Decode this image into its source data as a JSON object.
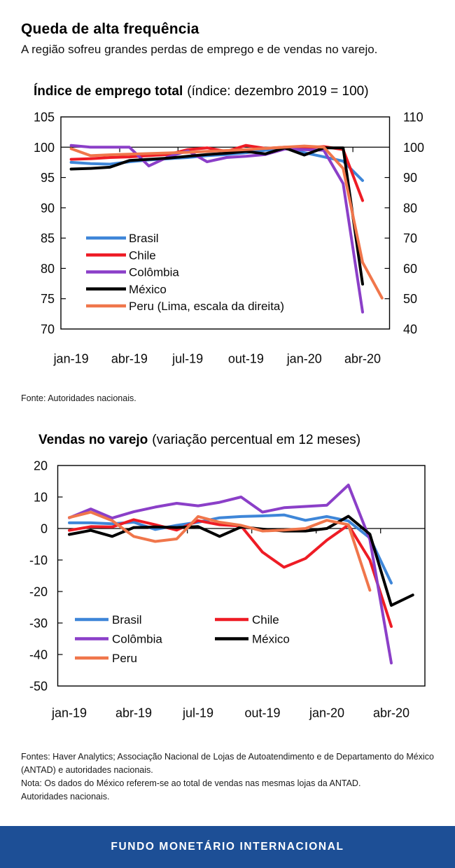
{
  "header": {
    "title": "Queda de alta frequência",
    "subtitle": "A região sofreu grandes perdas de emprego e de vendas no varejo."
  },
  "chart_data": [
    {
      "id": "employment-index",
      "type": "line",
      "title": "Índice de emprego total",
      "title_note": "(índice: dezembro 2019 = 100)",
      "x_months": [
        "jan-19",
        "fev-19",
        "mar-19",
        "abr-19",
        "mai-19",
        "jun-19",
        "jul-19",
        "ago-19",
        "set-19",
        "out-19",
        "nov-19",
        "dez-19",
        "jan-20",
        "fev-20",
        "mar-20",
        "abr-20",
        "mai-20"
      ],
      "x_tick_labels": [
        "jan-19",
        "abr-19",
        "jul-19",
        "out-19",
        "jan-20",
        "abr-20"
      ],
      "left_axis": {
        "min": 70,
        "max": 105,
        "label_ticks": [
          105,
          100,
          95,
          90,
          85,
          80,
          75,
          70
        ]
      },
      "right_axis": {
        "min": 40,
        "max": 110,
        "label_ticks": [
          110,
          100,
          90,
          80,
          70,
          60,
          50,
          40
        ]
      },
      "baseline_value": 100,
      "grid": false,
      "legend_position": "inside-bottom-left",
      "source_note": "Fonte: Autoridades nacionais.",
      "series": [
        {
          "name": "Brasil",
          "color": "#3e86d8",
          "axis": "left",
          "values": [
            97.5,
            97.3,
            97.2,
            97.6,
            97.9,
            98.1,
            98.3,
            98.6,
            98.8,
            99.1,
            99.5,
            99.8,
            99.1,
            98.4,
            97.7,
            94.5
          ]
        },
        {
          "name": "Chile",
          "color": "#ee1c25",
          "axis": "left",
          "values": [
            98.0,
            98.1,
            98.3,
            98.4,
            98.6,
            98.8,
            99.6,
            99.9,
            99.3,
            100.3,
            99.8,
            100.0,
            99.9,
            100.1,
            99.6,
            91.2
          ]
        },
        {
          "name": "Colômbia",
          "color": "#8b3fc8",
          "axis": "left",
          "values": [
            100.3,
            100.0,
            100.0,
            100.0,
            96.9,
            98.4,
            99.4,
            97.6,
            98.3,
            98.5,
            98.8,
            99.7,
            99.6,
            99.5,
            94.0,
            72.8
          ]
        },
        {
          "name": "México",
          "color": "#000000",
          "axis": "left",
          "values": [
            96.4,
            96.5,
            96.7,
            97.8,
            98.0,
            98.2,
            98.5,
            98.8,
            99.0,
            99.3,
            98.9,
            99.9,
            98.7,
            99.9,
            99.9,
            77.4
          ]
        },
        {
          "name": "Peru (Lima, escala da direita)",
          "color": "#f0764b",
          "axis": "right",
          "values": [
            99.5,
            97.2,
            97.5,
            97.7,
            97.9,
            98.1,
            98.3,
            98.6,
            98.9,
            99.2,
            99.6,
            100.0,
            100.4,
            100.0,
            93.0,
            62.0,
            50.2
          ]
        }
      ]
    },
    {
      "id": "retail-sales",
      "type": "line",
      "title": "Vendas no varejo",
      "title_note": "(variação percentual em 12 meses)",
      "x_months": [
        "jan-19",
        "fev-19",
        "mar-19",
        "abr-19",
        "mai-19",
        "jun-19",
        "jul-19",
        "ago-19",
        "set-19",
        "out-19",
        "nov-19",
        "dez-19",
        "jan-20",
        "fev-20",
        "mar-20",
        "abr-20",
        "mai-20"
      ],
      "x_tick_labels": [
        "jan-19",
        "abr-19",
        "jul-19",
        "out-19",
        "jan-20",
        "abr-20"
      ],
      "left_axis": {
        "min": -50,
        "max": 20,
        "label_ticks": [
          20,
          10,
          0,
          -10,
          -20,
          -30,
          -40,
          -50
        ]
      },
      "baseline_value": 0,
      "grid": false,
      "legend_position": "inside-bottom-left",
      "series": [
        {
          "name": "Brasil",
          "color": "#3e86d8",
          "axis": "left",
          "values": [
            1.8,
            1.8,
            1.5,
            2.0,
            -0.3,
            1.0,
            2.0,
            3.4,
            3.8,
            4.0,
            4.3,
            2.6,
            3.8,
            2.4,
            -3.0,
            -17.3
          ]
        },
        {
          "name": "Chile",
          "color": "#ee1c25",
          "axis": "left",
          "values": [
            -0.6,
            0.6,
            0.5,
            2.8,
            1.2,
            -0.5,
            2.5,
            1.2,
            0.8,
            -7.5,
            -12.3,
            -9.5,
            -3.7,
            1.1,
            -10.0,
            -31.1
          ]
        },
        {
          "name": "Colômbia",
          "color": "#8b3fc8",
          "axis": "left",
          "values": [
            3.4,
            6.2,
            3.3,
            5.3,
            6.8,
            8.0,
            7.2,
            8.3,
            10.0,
            5.2,
            6.6,
            7.0,
            7.4,
            13.8,
            -3.5,
            -42.7
          ]
        },
        {
          "name": "México",
          "color": "#000000",
          "axis": "left",
          "values": [
            -1.9,
            -0.6,
            -2.5,
            0.3,
            0.5,
            0.3,
            0.6,
            -2.5,
            0.5,
            -0.2,
            -0.8,
            -0.8,
            0.0,
            3.9,
            -1.8,
            -24.4,
            -21.1
          ]
        },
        {
          "name": "Peru",
          "color": "#f0764b",
          "axis": "left",
          "values": [
            3.5,
            5.2,
            2.5,
            -2.5,
            -4.1,
            -3.3,
            3.8,
            2.0,
            1.0,
            -0.8,
            -0.5,
            0.0,
            2.6,
            1.2,
            -19.6
          ]
        }
      ]
    }
  ],
  "notes": {
    "lines": [
      "Fontes: Haver Analytics; Associação Nacional de Lojas de Autoatendimento e de Departamento do México",
      "(ANTAD) e autoridades nacionais.",
      "Nota: Os dados do México referem-se ao total de vendas nas mesmas lojas da ANTAD.",
      "Autoridades nacionais."
    ]
  },
  "footer": {
    "label": "FUNDO MONETÁRIO INTERNACIONAL",
    "background": "#1d4f96"
  }
}
